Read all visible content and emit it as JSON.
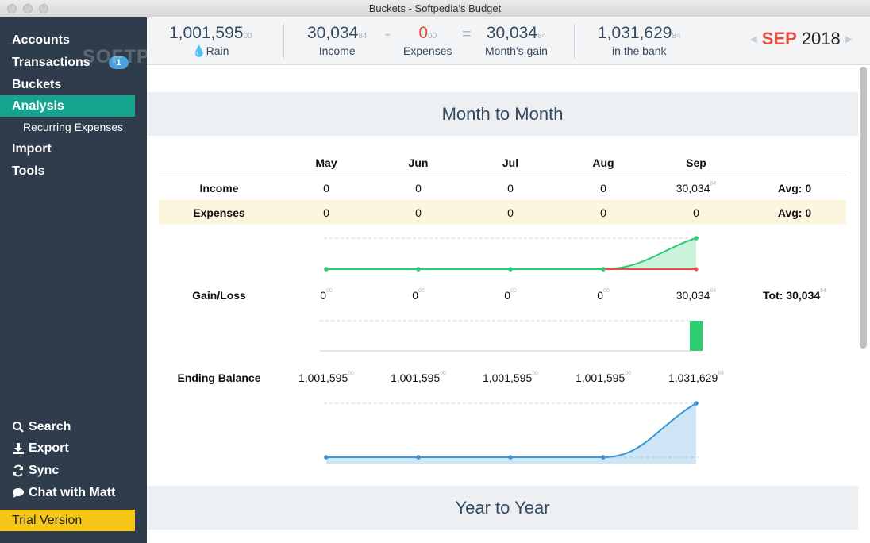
{
  "window": {
    "title": "Buckets - Softpedia's Budget"
  },
  "sidebar": {
    "watermark": "SOFTPEDIA",
    "items": [
      {
        "label": "Accounts"
      },
      {
        "label": "Transactions",
        "badge": "1"
      },
      {
        "label": "Buckets"
      },
      {
        "label": "Analysis",
        "active": true
      },
      {
        "label": "Recurring Expenses"
      },
      {
        "label": "Import"
      },
      {
        "label": "Tools"
      }
    ],
    "bottom": [
      {
        "label": "Search",
        "icon": "search-icon"
      },
      {
        "label": "Export",
        "icon": "download-icon"
      },
      {
        "label": "Sync",
        "icon": "sync-icon"
      },
      {
        "label": "Chat with Matt",
        "icon": "chat-icon"
      }
    ],
    "trial": "Trial Version"
  },
  "topbar": {
    "rain": {
      "value": "1,001,595",
      "cents": "00",
      "label": "Rain"
    },
    "income": {
      "value": "30,034",
      "cents": "84",
      "label": "Income"
    },
    "minus": "-",
    "expenses": {
      "value": "0",
      "cents": "00",
      "label": "Expenses"
    },
    "equals": "=",
    "gain": {
      "value": "30,034",
      "cents": "84",
      "label": "Month's gain"
    },
    "bank": {
      "value": "1,031,629",
      "cents": "84",
      "label": "in the bank"
    },
    "month": {
      "name": "SEP",
      "year": "2018"
    }
  },
  "colors": {
    "sidebar_bg": "#2f3c4c",
    "active": "#15a38e",
    "trial": "#f5c518",
    "expenses_red": "#e74c3c",
    "gain_green": "#2ecc71",
    "balance_blue": "#3a96d6"
  },
  "month_to_month": {
    "title": "Month to Month",
    "months": [
      "May",
      "Jun",
      "Jul",
      "Aug",
      "Sep"
    ],
    "income": {
      "label": "Income",
      "values": [
        {
          "v": "0",
          "c": ""
        },
        {
          "v": "0",
          "c": ""
        },
        {
          "v": "0",
          "c": ""
        },
        {
          "v": "0",
          "c": ""
        },
        {
          "v": "30,034",
          "c": "84"
        }
      ],
      "summary": "Avg: 0"
    },
    "expenses": {
      "label": "Expenses",
      "values": [
        {
          "v": "0",
          "c": ""
        },
        {
          "v": "0",
          "c": ""
        },
        {
          "v": "0",
          "c": ""
        },
        {
          "v": "0",
          "c": ""
        },
        {
          "v": "0",
          "c": ""
        }
      ],
      "summary": "Avg: 0"
    },
    "gain_loss": {
      "label": "Gain/Loss",
      "values": [
        {
          "v": "0",
          "c": "00"
        },
        {
          "v": "0",
          "c": "00"
        },
        {
          "v": "0",
          "c": "00"
        },
        {
          "v": "0",
          "c": "00"
        },
        {
          "v": "30,034",
          "c": "84"
        }
      ],
      "summary": "Tot: 30,034",
      "summary_cents": "84"
    },
    "ending_balance": {
      "label": "Ending Balance",
      "values": [
        {
          "v": "1,001,595",
          "c": "00"
        },
        {
          "v": "1,001,595",
          "c": "00"
        },
        {
          "v": "1,001,595",
          "c": "00"
        },
        {
          "v": "1,001,595",
          "c": "00"
        },
        {
          "v": "1,031,629",
          "c": "84"
        }
      ]
    }
  },
  "chart_data": [
    {
      "type": "line",
      "x": [
        "May",
        "Jun",
        "Jul",
        "Aug",
        "Sep"
      ],
      "series": [
        {
          "values": [
            0,
            0,
            0,
            0,
            30034.84
          ]
        },
        {
          "values": [
            0,
            0,
            0,
            0,
            0
          ]
        }
      ]
    },
    {
      "type": "bar",
      "categories": [
        "May",
        "Jun",
        "Jul",
        "Aug",
        "Sep"
      ],
      "values": [
        0,
        0,
        0,
        0,
        30034.84
      ]
    },
    {
      "type": "area",
      "x": [
        "May",
        "Jun",
        "Jul",
        "Aug",
        "Sep"
      ],
      "series": [
        {
          "values": [
            1001595.0,
            1001595.0,
            1001595.0,
            1001595.0,
            1031629.84
          ]
        }
      ]
    }
  ],
  "year_to_year": {
    "title": "Year to Year"
  }
}
